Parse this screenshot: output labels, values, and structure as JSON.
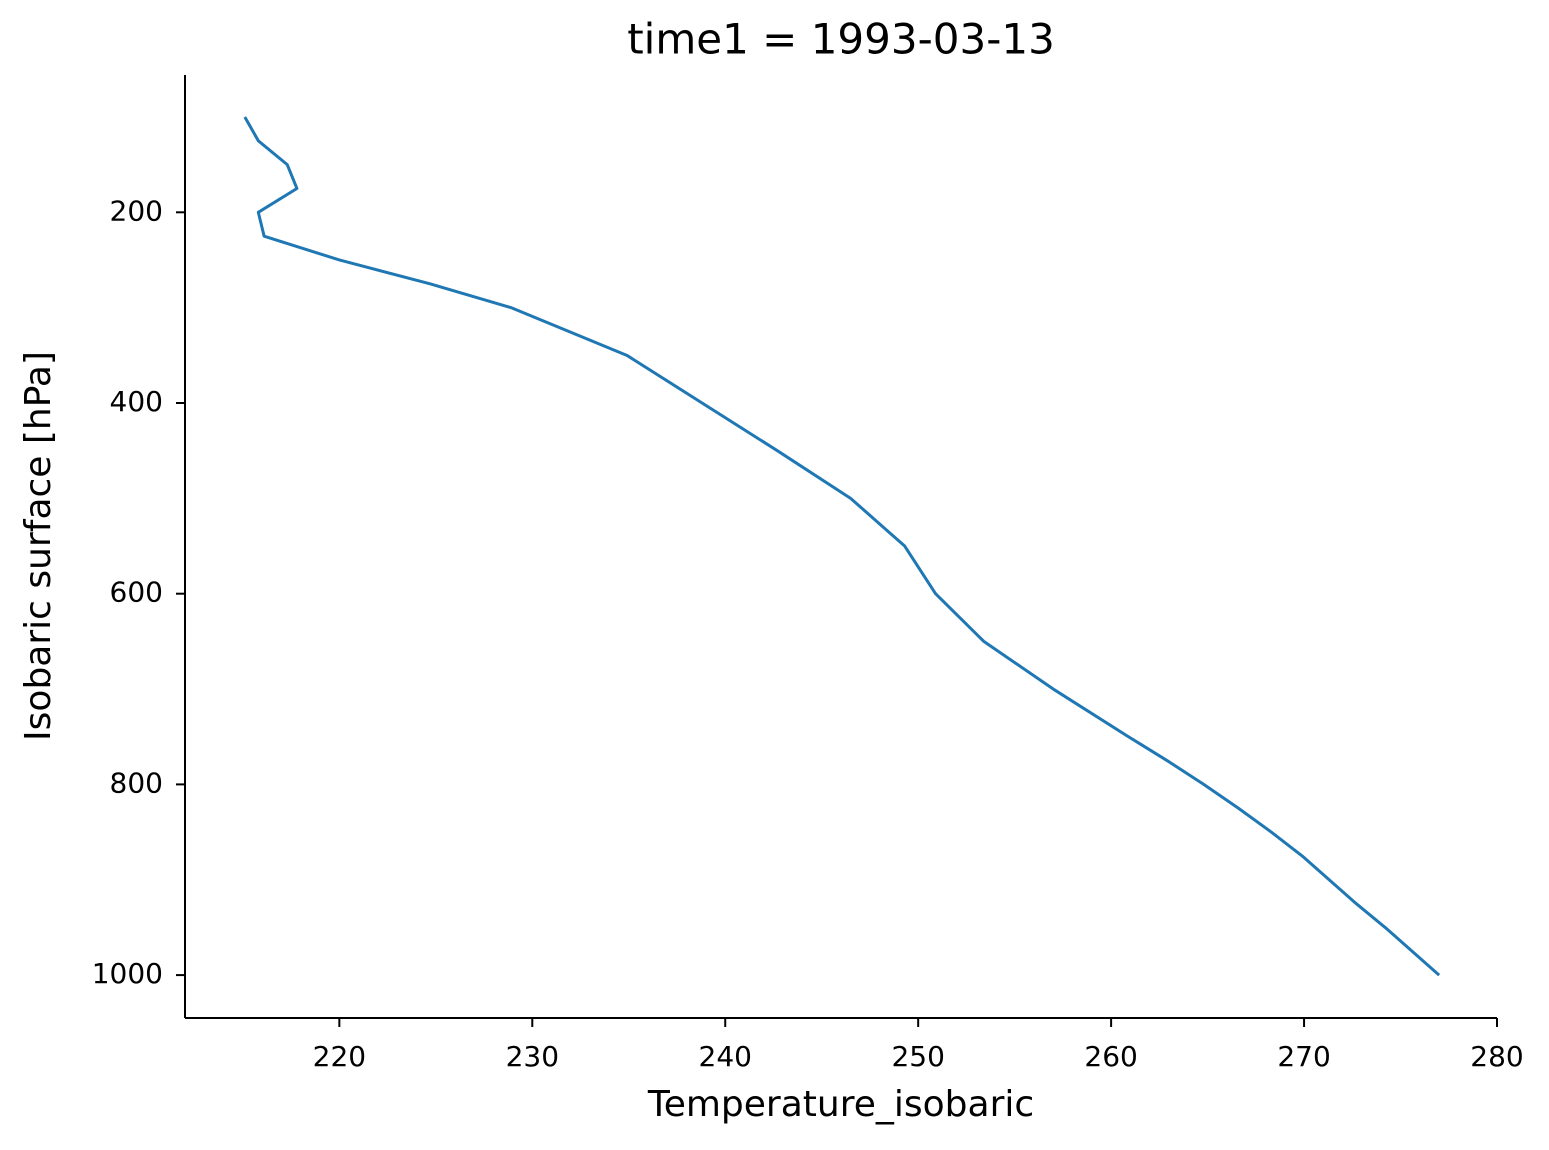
{
  "chart_data": {
    "type": "line",
    "title": "time1 = 1993-03-13",
    "x_label": "Temperature_isobaric",
    "y_label": "Isobaric surface [hPa]",
    "series": [
      {
        "color": "#1f77b4",
        "x": [
          215.1,
          215.8,
          217.3,
          217.8,
          215.8,
          216.1,
          220.0,
          224.7,
          228.9,
          234.9,
          238.8,
          242.7,
          246.5,
          249.3,
          250.9,
          253.4,
          257.0,
          260.9,
          262.9,
          264.8,
          266.6,
          268.3,
          269.9,
          271.3,
          272.7,
          274.2,
          275.6,
          277.0
        ],
        "values": [
          100,
          125,
          150,
          175,
          200,
          225,
          250,
          275,
          300,
          350,
          400,
          450,
          500,
          550,
          600,
          650,
          700,
          750,
          775,
          800,
          825,
          850,
          875,
          900,
          925,
          950,
          975,
          1000
        ]
      }
    ],
    "xlim": [
      212,
      280
    ],
    "xticks": [
      220,
      230,
      240,
      250,
      260,
      270,
      280
    ],
    "ylim": [
      56,
      1045
    ],
    "yticks": [
      200,
      400,
      600,
      800,
      1000
    ],
    "y_inverted": true,
    "grid": false
  }
}
